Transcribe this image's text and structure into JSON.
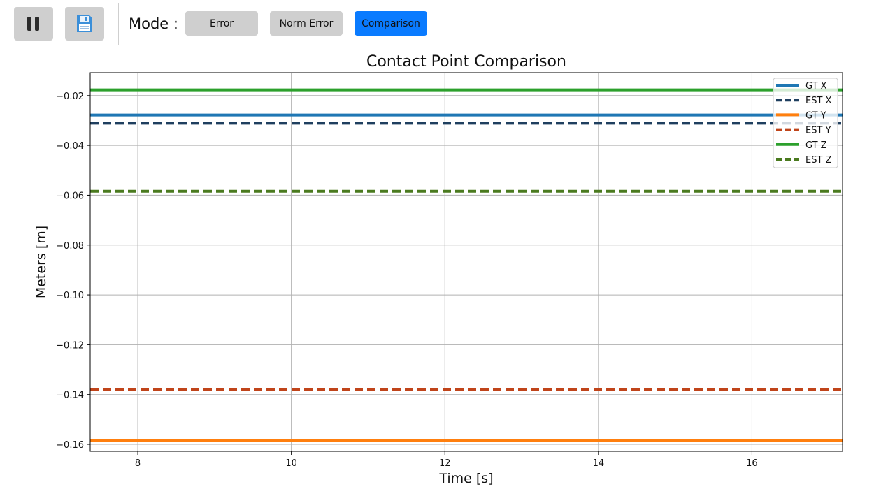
{
  "toolbar": {
    "pause_icon": "pause-icon",
    "save_icon": "floppy-disk-icon",
    "mode_label": "Mode :",
    "modes": [
      {
        "label": "Error",
        "active": false
      },
      {
        "label": "Norm Error",
        "active": false
      },
      {
        "label": "Comparison",
        "active": true
      }
    ],
    "active_color": "#0a7bff",
    "inactive_color": "#cfcfcf"
  },
  "chart_data": {
    "type": "line",
    "title": "Contact Point Comparison",
    "xlabel": "Time [s]",
    "ylabel": "Meters [m]",
    "xlim": [
      7.38,
      17.18
    ],
    "ylim": [
      -0.1628,
      -0.0108
    ],
    "xticks": [
      8,
      10,
      12,
      14,
      16
    ],
    "xtick_labels": [
      "8",
      "10",
      "12",
      "14",
      "16"
    ],
    "yticks": [
      -0.02,
      -0.04,
      -0.06,
      -0.08,
      -0.1,
      -0.12,
      -0.14,
      -0.16
    ],
    "ytick_labels": [
      "−0.02",
      "−0.04",
      "−0.06",
      "−0.08",
      "−0.10",
      "−0.12",
      "−0.14",
      "−0.16"
    ],
    "grid": true,
    "legend_position": "top-right",
    "series": [
      {
        "name": "GT X",
        "color": "#1f77b4",
        "dashed": false,
        "x": [
          7.38,
          17.18
        ],
        "y": [
          -0.0278,
          -0.0278
        ]
      },
      {
        "name": "EST X",
        "color": "#1f3f5f",
        "dashed": true,
        "x": [
          7.38,
          17.18
        ],
        "y": [
          -0.0311,
          -0.0311
        ]
      },
      {
        "name": "GT Y",
        "color": "#ff7f0e",
        "dashed": false,
        "x": [
          7.38,
          17.18
        ],
        "y": [
          -0.1584,
          -0.1584
        ]
      },
      {
        "name": "EST Y",
        "color": "#c0441a",
        "dashed": true,
        "x": [
          7.38,
          17.18
        ],
        "y": [
          -0.1379,
          -0.1379
        ]
      },
      {
        "name": "GT Z",
        "color": "#2ca02c",
        "dashed": false,
        "x": [
          7.38,
          17.18
        ],
        "y": [
          -0.0177,
          -0.0177
        ]
      },
      {
        "name": "EST Z",
        "color": "#4a7a1f",
        "dashed": true,
        "x": [
          7.38,
          17.18
        ],
        "y": [
          -0.0584,
          -0.0584
        ]
      }
    ]
  }
}
